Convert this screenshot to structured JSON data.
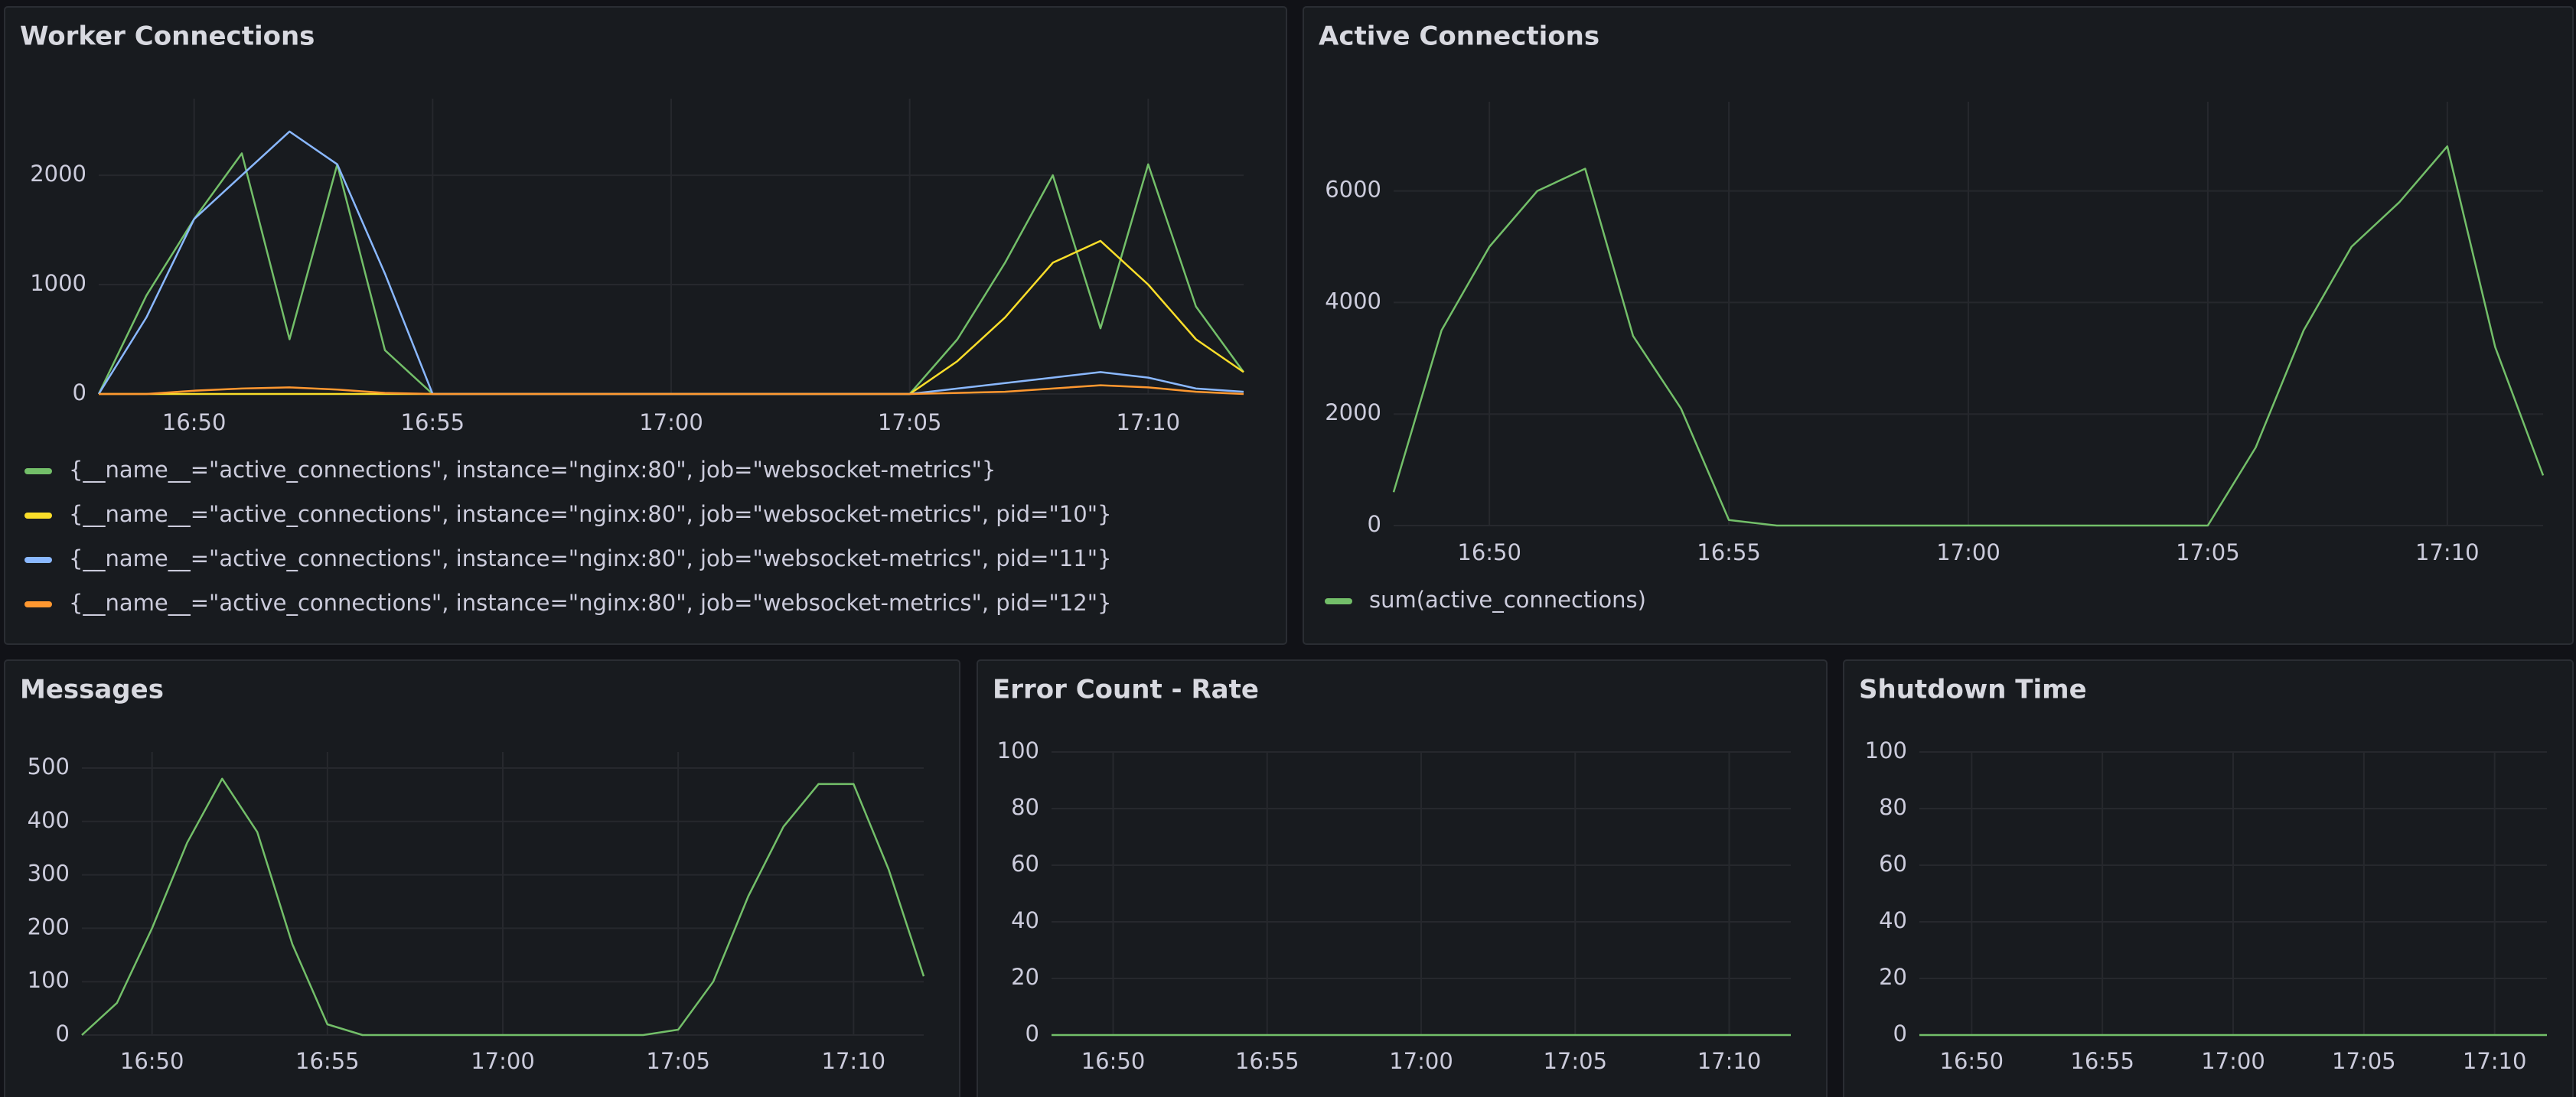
{
  "chart_data": [
    {
      "type": "line",
      "title": "Worker Connections",
      "legend": "bottom",
      "grid": true,
      "x": [
        "16:48",
        "16:49",
        "16:50",
        "16:51",
        "16:52",
        "16:53",
        "16:54",
        "16:55",
        "16:56",
        "16:57",
        "16:58",
        "16:59",
        "17:00",
        "17:01",
        "17:02",
        "17:03",
        "17:04",
        "17:05",
        "17:06",
        "17:07",
        "17:08",
        "17:09",
        "17:10",
        "17:11",
        "17:12"
      ],
      "xlim": [
        "16:48",
        "17:12"
      ],
      "xticks": [
        "16:50",
        "16:55",
        "17:00",
        "17:05",
        "17:10"
      ],
      "ylim": [
        0,
        2700
      ],
      "yticks": [
        0,
        1000,
        2000
      ],
      "series": [
        {
          "name": "{__name__=\"active_connections\", instance=\"nginx:80\", job=\"websocket-metrics\"}",
          "color": "#73bf69",
          "values": [
            0,
            900,
            1600,
            2200,
            500,
            2100,
            400,
            0,
            0,
            0,
            0,
            0,
            0,
            0,
            0,
            0,
            0,
            0,
            500,
            1200,
            2000,
            600,
            2100,
            800,
            200
          ]
        },
        {
          "name": "{__name__=\"active_connections\", instance=\"nginx:80\", job=\"websocket-metrics\", pid=\"10\"}",
          "color": "#fade2a",
          "values": [
            0,
            0,
            0,
            0,
            0,
            0,
            0,
            0,
            0,
            0,
            0,
            0,
            0,
            0,
            0,
            0,
            0,
            0,
            300,
            700,
            1200,
            1400,
            1000,
            500,
            200
          ]
        },
        {
          "name": "{__name__=\"active_connections\", instance=\"nginx:80\", job=\"websocket-metrics\", pid=\"11\"}",
          "color": "#8ab8ff",
          "values": [
            0,
            700,
            1600,
            2000,
            2400,
            2100,
            1100,
            0,
            0,
            0,
            0,
            0,
            0,
            0,
            0,
            0,
            0,
            0,
            50,
            100,
            150,
            200,
            150,
            50,
            20
          ]
        },
        {
          "name": "{__name__=\"active_connections\", instance=\"nginx:80\", job=\"websocket-metrics\", pid=\"12\"}",
          "color": "#ff9830",
          "values": [
            0,
            0,
            30,
            50,
            60,
            40,
            10,
            0,
            0,
            0,
            0,
            0,
            0,
            0,
            0,
            0,
            0,
            0,
            10,
            20,
            50,
            80,
            60,
            20,
            0
          ]
        }
      ]
    },
    {
      "type": "line",
      "title": "Active Connections",
      "legend": "bottom",
      "grid": true,
      "x": [
        "16:48",
        "16:49",
        "16:50",
        "16:51",
        "16:52",
        "16:53",
        "16:54",
        "16:55",
        "16:56",
        "16:57",
        "16:58",
        "16:59",
        "17:00",
        "17:01",
        "17:02",
        "17:03",
        "17:04",
        "17:05",
        "17:06",
        "17:07",
        "17:08",
        "17:09",
        "17:10",
        "17:11",
        "17:12"
      ],
      "xlim": [
        "16:48",
        "17:12"
      ],
      "xticks": [
        "16:50",
        "16:55",
        "17:00",
        "17:05",
        "17:10"
      ],
      "ylim": [
        0,
        7600
      ],
      "yticks": [
        0,
        2000,
        4000,
        6000
      ],
      "series": [
        {
          "name": "sum(active_connections)",
          "color": "#73bf69",
          "values": [
            600,
            3500,
            5000,
            6000,
            6400,
            3400,
            2100,
            100,
            0,
            0,
            0,
            0,
            0,
            0,
            0,
            0,
            0,
            0,
            1400,
            3500,
            5000,
            5800,
            6800,
            3200,
            900
          ]
        }
      ]
    },
    {
      "type": "line",
      "title": "Messages",
      "grid": true,
      "x": [
        "16:48",
        "16:49",
        "16:50",
        "16:51",
        "16:52",
        "16:53",
        "16:54",
        "16:55",
        "16:56",
        "16:57",
        "16:58",
        "16:59",
        "17:00",
        "17:01",
        "17:02",
        "17:03",
        "17:04",
        "17:05",
        "17:06",
        "17:07",
        "17:08",
        "17:09",
        "17:10",
        "17:11",
        "17:12"
      ],
      "xlim": [
        "16:48",
        "17:12"
      ],
      "xticks": [
        "16:50",
        "16:55",
        "17:00",
        "17:05",
        "17:10"
      ],
      "ylim": [
        0,
        530
      ],
      "yticks": [
        0,
        100,
        200,
        300,
        400,
        500
      ],
      "series": [
        {
          "color": "#73bf69",
          "values": [
            0,
            60,
            200,
            360,
            480,
            380,
            170,
            20,
            0,
            0,
            0,
            0,
            0,
            0,
            0,
            0,
            0,
            10,
            100,
            260,
            390,
            470,
            470,
            310,
            110
          ]
        }
      ]
    },
    {
      "type": "line",
      "title": "Error Count - Rate",
      "grid": true,
      "x": [
        "16:48",
        "16:49",
        "16:50",
        "16:51",
        "16:52",
        "16:53",
        "16:54",
        "16:55",
        "16:56",
        "16:57",
        "16:58",
        "16:59",
        "17:00",
        "17:01",
        "17:02",
        "17:03",
        "17:04",
        "17:05",
        "17:06",
        "17:07",
        "17:08",
        "17:09",
        "17:10",
        "17:11",
        "17:12"
      ],
      "xlim": [
        "16:48",
        "17:12"
      ],
      "xticks": [
        "16:50",
        "16:55",
        "17:00",
        "17:05",
        "17:10"
      ],
      "ylim": [
        0,
        100
      ],
      "yticks": [
        0,
        20,
        40,
        60,
        80,
        100
      ],
      "series": [
        {
          "color": "#73bf69",
          "values": [
            0,
            0,
            0,
            0,
            0,
            0,
            0,
            0,
            0,
            0,
            0,
            0,
            0,
            0,
            0,
            0,
            0,
            0,
            0,
            0,
            0,
            0,
            0,
            0,
            0
          ]
        }
      ]
    },
    {
      "type": "line",
      "title": "Shutdown Time",
      "grid": true,
      "x": [
        "16:48",
        "16:49",
        "16:50",
        "16:51",
        "16:52",
        "16:53",
        "16:54",
        "16:55",
        "16:56",
        "16:57",
        "16:58",
        "16:59",
        "17:00",
        "17:01",
        "17:02",
        "17:03",
        "17:04",
        "17:05",
        "17:06",
        "17:07",
        "17:08",
        "17:09",
        "17:10",
        "17:11",
        "17:12"
      ],
      "xlim": [
        "16:48",
        "17:12"
      ],
      "xticks": [
        "16:50",
        "16:55",
        "17:00",
        "17:05",
        "17:10"
      ],
      "ylim": [
        0,
        100
      ],
      "yticks": [
        0,
        20,
        40,
        60,
        80,
        100
      ],
      "series": [
        {
          "color": "#73bf69",
          "values": [
            0,
            0,
            0,
            0,
            0,
            0,
            0,
            0,
            0,
            0,
            0,
            0,
            0,
            0,
            0,
            0,
            0,
            0,
            0,
            0,
            0,
            0,
            0,
            0,
            0
          ]
        }
      ]
    }
  ]
}
